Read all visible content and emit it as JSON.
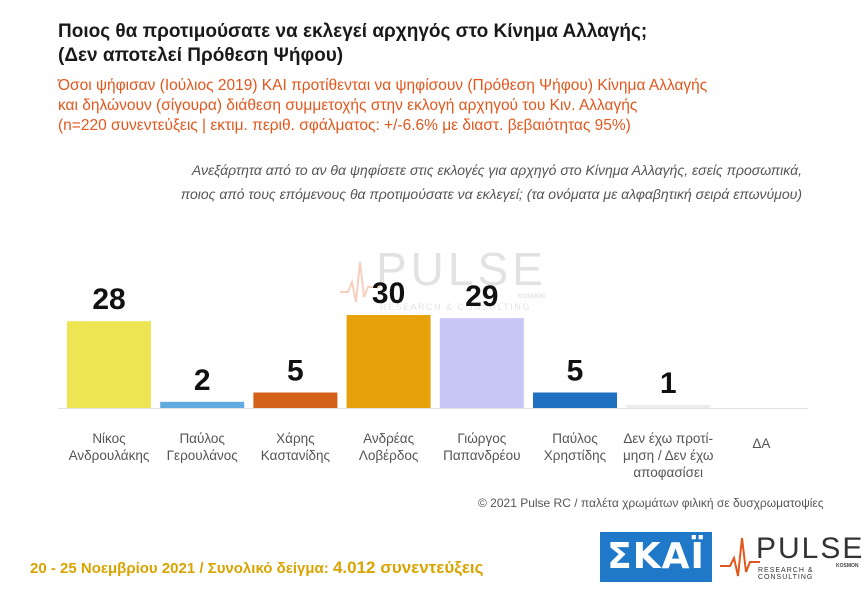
{
  "header": {
    "title_line1": "Ποιος θα προτιμούσατε να εκλεγεί αρχηγός στο Κίνημα Αλλαγής;",
    "title_line2": "(Δεν αποτελεί Πρόθεση Ψήφου)",
    "subtitle_line1": "Όσοι ψήφισαν (Ιούλιος 2019)  ΚΑΙ  προτίθενται να ψηφίσουν (Πρόθεση Ψήφου) Κίνημα Αλλαγής",
    "subtitle_line2": "και δηλώνουν (σίγουρα) διάθεση συμμετοχής στην εκλογή αρχηγού του Κιν. Αλλαγής",
    "subtitle_line3": "(n=220 συνεντεύξεις | εκτιμ. περιθ. σφάλματος: +/-6.6% με διαστ. βεβαιότητας 95%)",
    "question_line1": "Ανεξάρτητα από το αν θα ψηφίσετε στις εκλογές για αρχηγό στο Κίνημα Αλλαγής, εσείς προσωπικά,",
    "question_line2": "ποιος από τους επόμενους θα προτιμούσατε να εκλεγεί; (τα ονόματα με αλφαβητική σειρά επωνύμου)"
  },
  "watermark": {
    "brand": "PULSE",
    "tagline": "RESEARCH & CONSULTING",
    "kosmos": "KOSMON"
  },
  "chart_data": {
    "type": "bar",
    "categories": [
      [
        "Νίκος",
        "Ανδρουλάκης"
      ],
      [
        "Παύλος",
        "Γερουλάνος"
      ],
      [
        "Χάρης",
        "Καστανίδης"
      ],
      [
        "Ανδρέας",
        "Λοβέρδος"
      ],
      [
        "Γιώργος",
        "Παπανδρέου"
      ],
      [
        "Παύλος",
        "Χρηστίδης"
      ],
      [
        "Δεν έχω προτί-",
        "μηση / Δεν έχω",
        "αποφασίσει"
      ],
      [
        "ΔΑ"
      ]
    ],
    "values": [
      28,
      2,
      5,
      30,
      29,
      5,
      1,
      0
    ],
    "data_labels": [
      "28",
      "2",
      "5",
      "30",
      "29",
      "5",
      "1",
      ""
    ],
    "colors": [
      "#ede551",
      "#62abe0",
      "#d4611a",
      "#e7a10b",
      "#c9c7f5",
      "#1f70c1",
      "#ececec",
      "#ffffff"
    ],
    "ylim": [
      0,
      30
    ],
    "grid": false,
    "legend": "none"
  },
  "footer": {
    "credit": "© 2021 Pulse RC   /   παλέτα χρωμάτων φιλική σε δυσχρωματοψίες",
    "dates": "20 - 25  Νοεμβρίου 2021  /  Συνολικό δείγμα: ",
    "sample": "4.012 συνεντεύξεις",
    "skai_logo": "ΣΚΑΪ",
    "pulse_logo": "PULSE",
    "pulse_tagline": "RESEARCH & CONSULTING",
    "pulse_kosmos": "KOSMON"
  }
}
